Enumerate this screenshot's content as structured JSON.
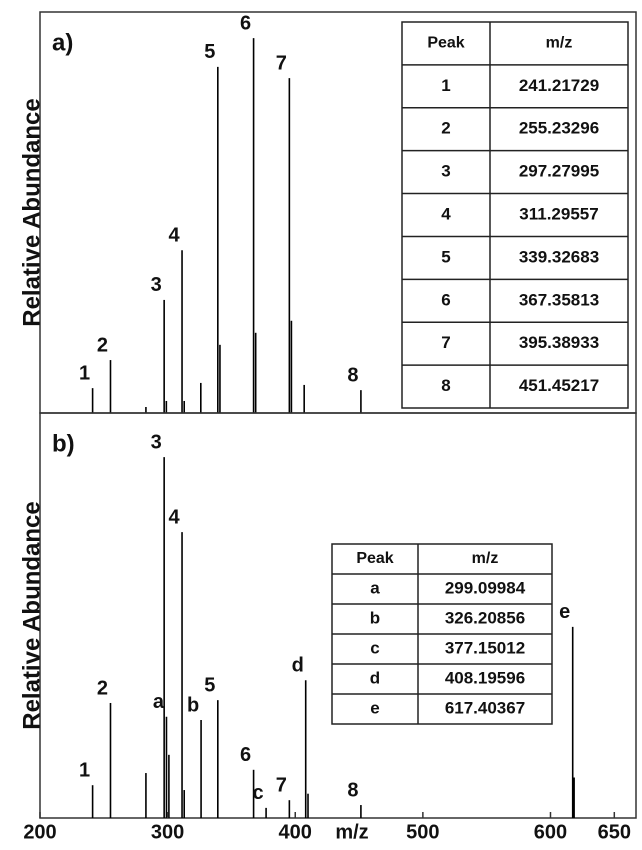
{
  "chart_data": [
    {
      "type": "stick",
      "panel_label": "a)",
      "ylabel": "Relative Abundance",
      "color": "#000000",
      "xlim": [
        200,
        667
      ],
      "ylim": [
        0,
        100
      ],
      "x": [
        241.21729,
        255.23296,
        283,
        297.27995,
        299,
        311.29557,
        313,
        326,
        339.32683,
        341,
        367.35813,
        369,
        395.38933,
        397,
        407,
        451.45217
      ],
      "values": [
        6.2,
        13.2,
        1.5,
        28.2,
        3,
        40.6,
        3,
        7.5,
        86.3,
        17,
        93.5,
        20,
        83.5,
        23,
        7,
        5.7
      ],
      "labels": [
        "1",
        "2",
        null,
        "3",
        null,
        "4",
        null,
        null,
        "5",
        null,
        "6",
        null,
        "7",
        null,
        null,
        "8"
      ],
      "table": {
        "columns": [
          "Peak",
          "m/z"
        ],
        "rows": [
          [
            "1",
            "241.21729"
          ],
          [
            "2",
            "255.23296"
          ],
          [
            "3",
            "297.27995"
          ],
          [
            "4",
            "311.29557"
          ],
          [
            "5",
            "339.32683"
          ],
          [
            "6",
            "367.35813"
          ],
          [
            "7",
            "395.38933"
          ],
          [
            "8",
            "451.45217"
          ]
        ]
      }
    },
    {
      "type": "stick",
      "panel_label": "b)",
      "ylabel": "Relative Abundance",
      "xlabel": "m/z",
      "color": "#000000",
      "xlim": [
        200,
        667
      ],
      "ylim": [
        0,
        100
      ],
      "xticks": [
        200,
        300,
        400,
        500,
        600,
        650
      ],
      "x": [
        241.21729,
        255.23296,
        283,
        297.27995,
        299.09984,
        301,
        311.29557,
        313,
        326.20856,
        339.32683,
        367.35813,
        377.15012,
        395.38933,
        408.19596,
        410,
        451.45217,
        617.40367,
        618.5
      ],
      "values": [
        8.1,
        28.4,
        11.1,
        89.1,
        25,
        15.6,
        70.6,
        6.9,
        24.2,
        29.1,
        11.9,
        2.5,
        4.4,
        34,
        6,
        3.2,
        47.2,
        10
      ],
      "labels": [
        "1",
        "2",
        null,
        "3",
        "a",
        null,
        "4",
        null,
        "b",
        "5",
        "6",
        "c",
        "7",
        "d",
        null,
        "8",
        "e",
        null
      ],
      "table": {
        "columns": [
          "Peak",
          "m/z"
        ],
        "rows": [
          [
            "a",
            "299.09984"
          ],
          [
            "b",
            "326.20856"
          ],
          [
            "c",
            "377.15012"
          ],
          [
            "d",
            "408.19596"
          ],
          [
            "e",
            "617.40367"
          ]
        ]
      }
    }
  ]
}
